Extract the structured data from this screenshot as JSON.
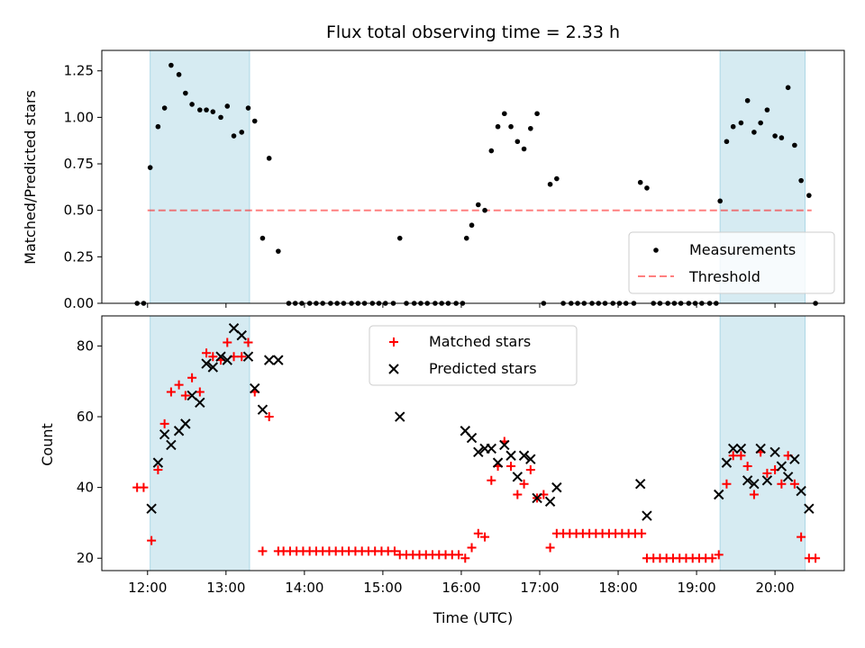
{
  "chart_data": [
    {
      "type": "scatter",
      "title": "Flux total observing time = 2.33 h",
      "ylabel": "Matched/Predicted stars",
      "xlabel": "",
      "xlim": [
        "11:25",
        "20:53"
      ],
      "ylim": [
        0,
        1.36
      ],
      "yticks": [
        0,
        0.25,
        0.5,
        0.75,
        1.0,
        1.25
      ],
      "ytick_labels": [
        "0.00",
        "0.25",
        "0.50",
        "0.75",
        "1.00",
        "1.25"
      ],
      "legend_position": "lower-right",
      "shaded_intervals": [
        [
          "12:02",
          "13:18"
        ],
        [
          "19:18",
          "20:23"
        ]
      ],
      "shade_color": "#add8e6",
      "threshold": {
        "name": "Threshold",
        "value": 0.5,
        "x_range": [
          "12:00",
          "20:28"
        ],
        "color": "#ff0000",
        "style": "dashed"
      },
      "series": [
        {
          "name": "Measurements",
          "color": "#000000",
          "points": [
            [
              "11:52",
              0.0
            ],
            [
              "11:57",
              0.0
            ],
            [
              "12:02",
              0.73
            ],
            [
              "12:08",
              0.95
            ],
            [
              "12:13",
              1.05
            ],
            [
              "12:18",
              1.28
            ],
            [
              "12:24",
              1.23
            ],
            [
              "12:29",
              1.13
            ],
            [
              "12:34",
              1.07
            ],
            [
              "12:40",
              1.04
            ],
            [
              "12:45",
              1.04
            ],
            [
              "12:50",
              1.03
            ],
            [
              "12:56",
              1.0
            ],
            [
              "13:01",
              1.06
            ],
            [
              "13:06",
              0.9
            ],
            [
              "13:12",
              0.92
            ],
            [
              "13:17",
              1.05
            ],
            [
              "13:22",
              0.98
            ],
            [
              "13:28",
              0.35
            ],
            [
              "13:33",
              0.78
            ],
            [
              "13:40",
              0.28
            ],
            [
              "13:48",
              0.0
            ],
            [
              "13:53",
              0.0
            ],
            [
              "13:58",
              0.0
            ],
            [
              "14:04",
              0.0
            ],
            [
              "14:09",
              0.0
            ],
            [
              "14:14",
              0.0
            ],
            [
              "14:20",
              0.0
            ],
            [
              "14:25",
              0.0
            ],
            [
              "14:30",
              0.0
            ],
            [
              "14:36",
              0.0
            ],
            [
              "14:41",
              0.0
            ],
            [
              "14:46",
              0.0
            ],
            [
              "14:52",
              0.0
            ],
            [
              "14:57",
              0.0
            ],
            [
              "15:02",
              0.0
            ],
            [
              "15:08",
              0.0
            ],
            [
              "15:13",
              0.35
            ],
            [
              "15:18",
              0.0
            ],
            [
              "15:24",
              0.0
            ],
            [
              "15:29",
              0.0
            ],
            [
              "15:34",
              0.0
            ],
            [
              "15:40",
              0.0
            ],
            [
              "15:45",
              0.0
            ],
            [
              "15:50",
              0.0
            ],
            [
              "15:56",
              0.0
            ],
            [
              "16:01",
              0.0
            ],
            [
              "16:04",
              0.35
            ],
            [
              "16:08",
              0.42
            ],
            [
              "16:13",
              0.53
            ],
            [
              "16:18",
              0.5
            ],
            [
              "16:23",
              0.82
            ],
            [
              "16:28",
              0.95
            ],
            [
              "16:33",
              1.02
            ],
            [
              "16:38",
              0.95
            ],
            [
              "16:43",
              0.87
            ],
            [
              "16:48",
              0.83
            ],
            [
              "16:53",
              0.94
            ],
            [
              "16:58",
              1.02
            ],
            [
              "17:03",
              0.0
            ],
            [
              "17:08",
              0.64
            ],
            [
              "17:13",
              0.67
            ],
            [
              "17:18",
              0.0
            ],
            [
              "17:24",
              0.0
            ],
            [
              "17:29",
              0.0
            ],
            [
              "17:34",
              0.0
            ],
            [
              "17:40",
              0.0
            ],
            [
              "17:45",
              0.0
            ],
            [
              "17:50",
              0.0
            ],
            [
              "17:56",
              0.0
            ],
            [
              "18:01",
              0.0
            ],
            [
              "18:06",
              0.0
            ],
            [
              "18:12",
              0.0
            ],
            [
              "18:17",
              0.65
            ],
            [
              "18:22",
              0.62
            ],
            [
              "18:27",
              0.0
            ],
            [
              "18:32",
              0.0
            ],
            [
              "18:38",
              0.0
            ],
            [
              "18:43",
              0.0
            ],
            [
              "18:48",
              0.0
            ],
            [
              "18:54",
              0.0
            ],
            [
              "18:59",
              0.0
            ],
            [
              "19:04",
              0.0
            ],
            [
              "19:10",
              0.0
            ],
            [
              "19:15",
              0.0
            ],
            [
              "19:18",
              0.55
            ],
            [
              "19:23",
              0.87
            ],
            [
              "19:28",
              0.95
            ],
            [
              "19:34",
              0.97
            ],
            [
              "19:39",
              1.09
            ],
            [
              "19:44",
              0.92
            ],
            [
              "19:49",
              0.97
            ],
            [
              "19:54",
              1.04
            ],
            [
              "20:00",
              0.9
            ],
            [
              "20:05",
              0.89
            ],
            [
              "20:10",
              1.16
            ],
            [
              "20:15",
              0.85
            ],
            [
              "20:20",
              0.66
            ],
            [
              "20:26",
              0.58
            ],
            [
              "20:31",
              0.0
            ]
          ]
        }
      ]
    },
    {
      "type": "scatter",
      "title": "",
      "xlabel": "Time (UTC)",
      "ylabel": "Count",
      "xlim": [
        "11:25",
        "20:53"
      ],
      "ylim": [
        16.5,
        88.5
      ],
      "xticks": [
        "12:00",
        "13:00",
        "14:00",
        "15:00",
        "16:00",
        "17:00",
        "18:00",
        "19:00",
        "20:00"
      ],
      "yticks": [
        20,
        40,
        60,
        80
      ],
      "legend_position": "upper-center",
      "shaded_intervals": [
        [
          "12:02",
          "13:18"
        ],
        [
          "19:18",
          "20:23"
        ]
      ],
      "shade_color": "#add8e6",
      "series": [
        {
          "name": "Matched stars",
          "marker": "+",
          "color": "#ff0000",
          "points": [
            [
              "11:52",
              40
            ],
            [
              "11:57",
              40
            ],
            [
              "12:03",
              25
            ],
            [
              "12:08",
              45
            ],
            [
              "12:13",
              58
            ],
            [
              "12:18",
              67
            ],
            [
              "12:24",
              69
            ],
            [
              "12:29",
              66
            ],
            [
              "12:34",
              71
            ],
            [
              "12:40",
              67
            ],
            [
              "12:45",
              78
            ],
            [
              "12:50",
              77
            ],
            [
              "12:56",
              76
            ],
            [
              "13:01",
              81
            ],
            [
              "13:06",
              77
            ],
            [
              "13:12",
              77
            ],
            [
              "13:17",
              81
            ],
            [
              "13:22",
              67
            ],
            [
              "13:28",
              22
            ],
            [
              "13:33",
              60
            ],
            [
              "13:40",
              22
            ],
            [
              "13:44",
              22
            ],
            [
              "13:49",
              22
            ],
            [
              "13:54",
              22
            ],
            [
              "13:59",
              22
            ],
            [
              "14:04",
              22
            ],
            [
              "14:09",
              22
            ],
            [
              "14:14",
              22
            ],
            [
              "14:19",
              22
            ],
            [
              "14:24",
              22
            ],
            [
              "14:29",
              22
            ],
            [
              "14:34",
              22
            ],
            [
              "14:39",
              22
            ],
            [
              "14:44",
              22
            ],
            [
              "14:49",
              22
            ],
            [
              "14:54",
              22
            ],
            [
              "14:59",
              22
            ],
            [
              "15:04",
              22
            ],
            [
              "15:09",
              22
            ],
            [
              "15:13",
              21
            ],
            [
              "15:18",
              21
            ],
            [
              "15:23",
              21
            ],
            [
              "15:28",
              21
            ],
            [
              "15:33",
              21
            ],
            [
              "15:38",
              21
            ],
            [
              "15:43",
              21
            ],
            [
              "15:48",
              21
            ],
            [
              "15:53",
              21
            ],
            [
              "15:58",
              21
            ],
            [
              "16:03",
              20
            ],
            [
              "16:08",
              23
            ],
            [
              "16:13",
              27
            ],
            [
              "16:18",
              26
            ],
            [
              "16:23",
              42
            ],
            [
              "16:28",
              46
            ],
            [
              "16:33",
              53
            ],
            [
              "16:38",
              46
            ],
            [
              "16:43",
              38
            ],
            [
              "16:48",
              41
            ],
            [
              "16:53",
              45
            ],
            [
              "16:58",
              37
            ],
            [
              "17:03",
              38
            ],
            [
              "17:08",
              23
            ],
            [
              "17:13",
              27
            ],
            [
              "17:18",
              27
            ],
            [
              "17:23",
              27
            ],
            [
              "17:28",
              27
            ],
            [
              "17:33",
              27
            ],
            [
              "17:38",
              27
            ],
            [
              "17:43",
              27
            ],
            [
              "17:48",
              27
            ],
            [
              "17:53",
              27
            ],
            [
              "17:58",
              27
            ],
            [
              "18:03",
              27
            ],
            [
              "18:08",
              27
            ],
            [
              "18:13",
              27
            ],
            [
              "18:18",
              27
            ],
            [
              "18:22",
              20
            ],
            [
              "18:27",
              20
            ],
            [
              "18:32",
              20
            ],
            [
              "18:37",
              20
            ],
            [
              "18:42",
              20
            ],
            [
              "18:47",
              20
            ],
            [
              "18:52",
              20
            ],
            [
              "18:57",
              20
            ],
            [
              "19:02",
              20
            ],
            [
              "19:07",
              20
            ],
            [
              "19:12",
              20
            ],
            [
              "19:17",
              21
            ],
            [
              "19:23",
              41
            ],
            [
              "19:28",
              49
            ],
            [
              "19:34",
              49
            ],
            [
              "19:39",
              46
            ],
            [
              "19:44",
              38
            ],
            [
              "19:49",
              50
            ],
            [
              "19:54",
              44
            ],
            [
              "20:00",
              45
            ],
            [
              "20:05",
              41
            ],
            [
              "20:10",
              49
            ],
            [
              "20:15",
              41
            ],
            [
              "20:20",
              26
            ],
            [
              "20:26",
              20
            ],
            [
              "20:31",
              20
            ]
          ]
        },
        {
          "name": "Predicted stars",
          "marker": "x",
          "color": "#000000",
          "points": [
            [
              "12:03",
              34
            ],
            [
              "12:08",
              47
            ],
            [
              "12:13",
              55
            ],
            [
              "12:18",
              52
            ],
            [
              "12:24",
              56
            ],
            [
              "12:29",
              58
            ],
            [
              "12:34",
              66
            ],
            [
              "12:40",
              64
            ],
            [
              "12:45",
              75
            ],
            [
              "12:50",
              74
            ],
            [
              "12:56",
              77
            ],
            [
              "13:01",
              76
            ],
            [
              "13:06",
              85
            ],
            [
              "13:12",
              83
            ],
            [
              "13:17",
              77
            ],
            [
              "13:22",
              68
            ],
            [
              "13:28",
              62
            ],
            [
              "13:33",
              76
            ],
            [
              "13:40",
              76
            ],
            [
              "15:13",
              60
            ],
            [
              "16:03",
              56
            ],
            [
              "16:08",
              54
            ],
            [
              "16:13",
              50
            ],
            [
              "16:18",
              51
            ],
            [
              "16:23",
              51
            ],
            [
              "16:28",
              47
            ],
            [
              "16:33",
              52
            ],
            [
              "16:38",
              49
            ],
            [
              "16:43",
              43
            ],
            [
              "16:48",
              49
            ],
            [
              "16:53",
              48
            ],
            [
              "16:58",
              37
            ],
            [
              "17:08",
              36
            ],
            [
              "17:13",
              40
            ],
            [
              "18:17",
              41
            ],
            [
              "18:22",
              32
            ],
            [
              "19:17",
              38
            ],
            [
              "19:23",
              47
            ],
            [
              "19:28",
              51
            ],
            [
              "19:34",
              51
            ],
            [
              "19:39",
              42
            ],
            [
              "19:44",
              41
            ],
            [
              "19:49",
              51
            ],
            [
              "19:54",
              42
            ],
            [
              "20:00",
              50
            ],
            [
              "20:05",
              46
            ],
            [
              "20:10",
              43
            ],
            [
              "20:15",
              48
            ],
            [
              "20:20",
              39
            ],
            [
              "20:26",
              34
            ]
          ]
        }
      ]
    }
  ]
}
